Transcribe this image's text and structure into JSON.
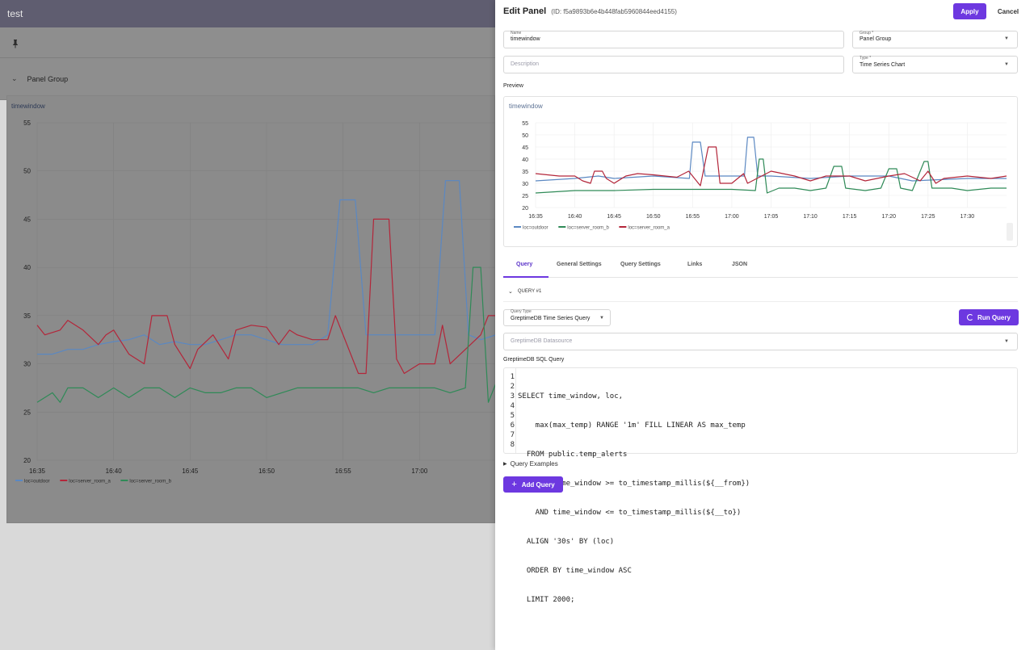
{
  "dashboard": {
    "title": "test",
    "group_label": "Panel Group",
    "panel_title": "timewindow"
  },
  "drawer": {
    "title": "Edit Panel",
    "panel_id": "(ID: f5a9893b6e4b448fab5960844eed4155)",
    "apply_label": "Apply",
    "cancel_label": "Cancel",
    "name_label": "Name",
    "name_value": "timewindow",
    "group_label": "Group *",
    "group_value": "Panel Group",
    "description_placeholder": "Description",
    "type_label": "Type *",
    "type_value": "Time Series Chart",
    "preview_label": "Preview",
    "preview_title": "timewindow"
  },
  "tabs": [
    {
      "label": "Query",
      "active": true
    },
    {
      "label": "General Settings",
      "active": false
    },
    {
      "label": "Query Settings",
      "active": false
    },
    {
      "label": "Links",
      "active": false
    },
    {
      "label": "JSON",
      "active": false
    }
  ],
  "query": {
    "header": "QUERY #1",
    "type_label": "Query Type",
    "type_value": "GreptimeDB Time Series Query",
    "run_label": "Run Query",
    "datasource_placeholder": "GreptimeDB Datasource",
    "sql_label": "GreptimeDB SQL Query",
    "sql_line_numbers": [
      "1",
      "2",
      "3",
      "4",
      "5",
      "6",
      "7",
      "8"
    ],
    "sql_lines": [
      "SELECT time_window, loc,",
      "    max(max_temp) RANGE '1m' FILL LINEAR AS max_temp",
      "  FROM public.temp_alerts",
      "  WHERE time_window >= to_timestamp_millis(${__from})",
      "    AND time_window <= to_timestamp_millis(${__to})",
      "  ALIGN '30s' BY (loc)",
      "  ORDER BY time_window ASC",
      "  LIMIT 2000;"
    ],
    "examples_label": "Query Examples",
    "add_query_label": "Add Query"
  },
  "colors": {
    "accent": "#6d38e0",
    "outdoor": "#5b88c2",
    "server_room_a": "#b3263a",
    "server_room_b": "#2f8a57"
  },
  "chart_data": [
    {
      "type": "line",
      "title": "timewindow",
      "x_ticks": [
        "16:35",
        "16:40",
        "16:45",
        "16:50",
        "16:55",
        "17:00"
      ],
      "y_ticks": [
        20,
        25,
        30,
        35,
        40,
        45,
        50,
        55
      ],
      "ylim": [
        20,
        55
      ],
      "xlim_minutes": [
        0,
        30
      ],
      "legend_position": "bottom-left",
      "series": [
        {
          "name": "loc=outdoor",
          "color_key": "outdoor",
          "points": [
            [
              0,
              31
            ],
            [
              1,
              31
            ],
            [
              2,
              31.5
            ],
            [
              3,
              31.5
            ],
            [
              4,
              32
            ],
            [
              5,
              32.3
            ],
            [
              6,
              32.5
            ],
            [
              7,
              33
            ],
            [
              8,
              32
            ],
            [
              9,
              32.3
            ],
            [
              10,
              32
            ],
            [
              11,
              32
            ],
            [
              12,
              32.5
            ],
            [
              13,
              33
            ],
            [
              14,
              33
            ],
            [
              15,
              32.5
            ],
            [
              16,
              32
            ],
            [
              17,
              32
            ],
            [
              18,
              32
            ],
            [
              19,
              33
            ],
            [
              19.8,
              47
            ],
            [
              20.8,
              47
            ],
            [
              21.5,
              33
            ],
            [
              22.5,
              33
            ],
            [
              23,
              33
            ],
            [
              24,
              33
            ],
            [
              25,
              33
            ],
            [
              26,
              33
            ],
            [
              26.7,
              49
            ],
            [
              27.6,
              49
            ],
            [
              28.2,
              33
            ],
            [
              29,
              32.5
            ],
            [
              30,
              33
            ]
          ]
        },
        {
          "name": "loc=server_room_a",
          "color_key": "server_room_a",
          "points": [
            [
              0,
              34
            ],
            [
              0.5,
              33
            ],
            [
              1.5,
              33.5
            ],
            [
              2,
              34.5
            ],
            [
              3,
              33.5
            ],
            [
              4,
              32
            ],
            [
              4.5,
              33
            ],
            [
              5,
              33.5
            ],
            [
              6,
              31
            ],
            [
              7,
              30
            ],
            [
              7.5,
              35
            ],
            [
              8.5,
              35
            ],
            [
              9,
              32
            ],
            [
              10,
              29.5
            ],
            [
              10.5,
              31.5
            ],
            [
              11.5,
              33
            ],
            [
              12.5,
              30.5
            ],
            [
              13,
              33.5
            ],
            [
              14,
              34
            ],
            [
              15,
              33.8
            ],
            [
              15.8,
              32
            ],
            [
              16.5,
              33.5
            ],
            [
              17,
              33
            ],
            [
              18,
              32.5
            ],
            [
              19,
              32.5
            ],
            [
              19.5,
              35
            ],
            [
              20,
              33
            ],
            [
              21,
              29
            ],
            [
              21.5,
              29
            ],
            [
              22,
              45
            ],
            [
              23,
              45
            ],
            [
              23.5,
              30.5
            ],
            [
              24,
              29
            ],
            [
              25,
              30
            ],
            [
              26,
              30
            ],
            [
              26.5,
              34
            ],
            [
              27,
              30
            ],
            [
              28,
              31.5
            ],
            [
              29,
              33
            ],
            [
              29.5,
              35
            ],
            [
              30,
              35
            ]
          ]
        },
        {
          "name": "loc=server_room_b",
          "color_key": "server_room_b",
          "points": [
            [
              0,
              26
            ],
            [
              1,
              27
            ],
            [
              1.5,
              26
            ],
            [
              2,
              27.5
            ],
            [
              3,
              27.5
            ],
            [
              4,
              26.5
            ],
            [
              5,
              27.5
            ],
            [
              6,
              26.5
            ],
            [
              7,
              27.5
            ],
            [
              8,
              27.5
            ],
            [
              9,
              26.5
            ],
            [
              10,
              27.5
            ],
            [
              11,
              27
            ],
            [
              12,
              27
            ],
            [
              13,
              27.5
            ],
            [
              14,
              27.5
            ],
            [
              15,
              26.5
            ],
            [
              16,
              27
            ],
            [
              17,
              27.5
            ],
            [
              18,
              27.5
            ],
            [
              19,
              27.5
            ],
            [
              20,
              27.5
            ],
            [
              21,
              27.5
            ],
            [
              22,
              27
            ],
            [
              23,
              27.5
            ],
            [
              24,
              27.5
            ],
            [
              25,
              27.5
            ],
            [
              26,
              27.5
            ],
            [
              27,
              27
            ],
            [
              28,
              27.5
            ],
            [
              28.5,
              40
            ],
            [
              29,
              40
            ],
            [
              29.5,
              26
            ],
            [
              30,
              28
            ]
          ]
        }
      ]
    },
    {
      "type": "line",
      "title": "timewindow",
      "x_ticks": [
        "16:35",
        "16:40",
        "16:45",
        "16:50",
        "16:55",
        "17:00",
        "17:05",
        "17:10",
        "17:15",
        "17:20",
        "17:25",
        "17:30"
      ],
      "y_ticks": [
        20,
        25,
        30,
        35,
        40,
        45,
        50,
        55
      ],
      "ylim": [
        20,
        55
      ],
      "xlim_minutes": [
        0,
        60
      ],
      "legend_position": "bottom-left",
      "series": [
        {
          "name": "loc=outdoor",
          "color_key": "outdoor",
          "points": [
            [
              0,
              31
            ],
            [
              5,
              32
            ],
            [
              8,
              33
            ],
            [
              10,
              32
            ],
            [
              15,
              33
            ],
            [
              19.6,
              32
            ],
            [
              20,
              47
            ],
            [
              21,
              47
            ],
            [
              21.6,
              33
            ],
            [
              25,
              33
            ],
            [
              26.6,
              33
            ],
            [
              27,
              49
            ],
            [
              27.8,
              49
            ],
            [
              28.3,
              33
            ],
            [
              30,
              33
            ],
            [
              35,
              32
            ],
            [
              40,
              33
            ],
            [
              45,
              33
            ],
            [
              48,
              31
            ],
            [
              55,
              32
            ],
            [
              60,
              32
            ]
          ]
        },
        {
          "name": "loc=server_room_b",
          "color_key": "server_room_b",
          "points": [
            [
              0,
              26
            ],
            [
              5,
              27
            ],
            [
              10,
              27
            ],
            [
              15,
              27.5
            ],
            [
              20,
              27.5
            ],
            [
              25,
              27.5
            ],
            [
              28,
              27
            ],
            [
              28.5,
              40
            ],
            [
              29,
              40
            ],
            [
              29.5,
              26
            ],
            [
              31,
              28
            ],
            [
              33,
              28
            ],
            [
              35,
              27
            ],
            [
              37,
              28
            ],
            [
              38,
              37
            ],
            [
              39,
              37
            ],
            [
              39.5,
              28
            ],
            [
              42,
              27
            ],
            [
              44,
              28
            ],
            [
              45,
              36
            ],
            [
              46,
              36
            ],
            [
              46.5,
              28
            ],
            [
              48,
              27
            ],
            [
              49.5,
              39
            ],
            [
              50,
              39
            ],
            [
              50.5,
              28
            ],
            [
              53,
              28
            ],
            [
              55,
              27
            ],
            [
              58,
              28
            ],
            [
              60,
              28
            ]
          ]
        },
        {
          "name": "loc=server_room_a",
          "color_key": "server_room_a",
          "points": [
            [
              0,
              34
            ],
            [
              3,
              33
            ],
            [
              5,
              33
            ],
            [
              6,
              31
            ],
            [
              7,
              30
            ],
            [
              7.5,
              35
            ],
            [
              8.5,
              35
            ],
            [
              9,
              32
            ],
            [
              10,
              30
            ],
            [
              11.5,
              33
            ],
            [
              13,
              34
            ],
            [
              15,
              33.5
            ],
            [
              18,
              32.5
            ],
            [
              19.5,
              35
            ],
            [
              21,
              29
            ],
            [
              22,
              45
            ],
            [
              23,
              45
            ],
            [
              23.5,
              30
            ],
            [
              25,
              30
            ],
            [
              26.5,
              34
            ],
            [
              27,
              30
            ],
            [
              30,
              35
            ],
            [
              33,
              33
            ],
            [
              35,
              31
            ],
            [
              37,
              33
            ],
            [
              40,
              33
            ],
            [
              42,
              31
            ],
            [
              45,
              33
            ],
            [
              47,
              34
            ],
            [
              49,
              31
            ],
            [
              50,
              35
            ],
            [
              51,
              30
            ],
            [
              52,
              32
            ],
            [
              55,
              33
            ],
            [
              58,
              32
            ],
            [
              60,
              33
            ]
          ]
        }
      ]
    }
  ]
}
